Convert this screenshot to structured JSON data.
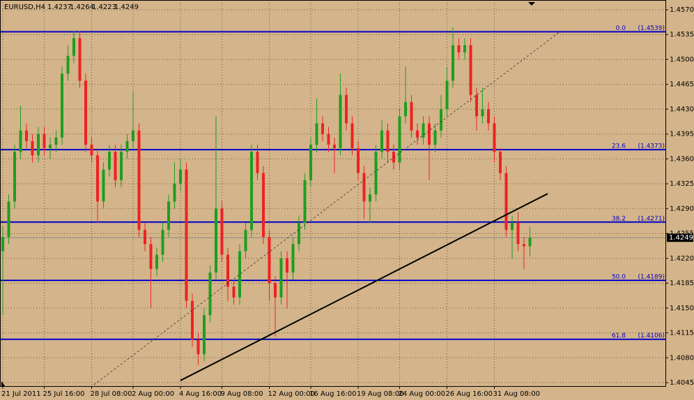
{
  "chart_data": {
    "type": "candlestick",
    "symbol": "EURUSD,H4",
    "ohlc": [
      1.4237,
      1.4264,
      1.4223,
      1.4249
    ],
    "categories": [
      "21 Jul 2011",
      null,
      null,
      null,
      null,
      null,
      null,
      "25 Jul 16:00",
      null,
      null,
      null,
      null,
      null,
      null,
      null,
      "28 Jul 08:00",
      null,
      null,
      null,
      null,
      null,
      null,
      "2 Aug 00:00",
      null,
      null,
      null,
      null,
      null,
      null,
      null,
      "4 Aug 16:00",
      null,
      null,
      null,
      null,
      null,
      null,
      "9 Aug 08:00",
      null,
      null,
      null,
      null,
      null,
      null,
      null,
      "12 Aug 00:00",
      null,
      null,
      null,
      null,
      null,
      null,
      "16 Aug 16:00",
      null,
      null,
      null,
      null,
      null,
      null,
      null,
      "19 Aug 08:00",
      null,
      null,
      null,
      null,
      null,
      null,
      "24 Aug 00:00",
      null,
      null,
      null,
      null,
      null,
      null,
      null,
      "26 Aug 16:00",
      null,
      null,
      null,
      null,
      null,
      null,
      null,
      "31 Aug 08:00",
      null,
      null,
      null,
      null,
      null,
      null
    ],
    "open": [
      1.423,
      1.425,
      1.43,
      1.437,
      1.44,
      1.4385,
      1.4365,
      1.4395,
      1.4375,
      1.438,
      1.439,
      1.448,
      1.4505,
      1.453,
      1.447,
      1.438,
      1.4365,
      1.43,
      1.4345,
      1.437,
      1.433,
      1.437,
      1.4385,
      1.44,
      1.426,
      1.424,
      1.4205,
      1.4225,
      1.426,
      1.43,
      1.4325,
      1.4345,
      1.416,
      1.4105,
      1.4085,
      1.414,
      1.42,
      1.429,
      1.4225,
      1.418,
      1.4165,
      1.423,
      1.426,
      1.437,
      1.434,
      1.425,
      1.4185,
      1.4165,
      1.422,
      1.42,
      1.424,
      1.427,
      1.433,
      1.438,
      1.441,
      1.4395,
      1.438,
      1.4375,
      1.445,
      1.441,
      1.4375,
      1.434,
      1.43,
      1.431,
      1.437,
      1.44,
      1.437,
      1.4355,
      1.442,
      1.444,
      1.44,
      1.439,
      1.441,
      1.438,
      1.44,
      1.443,
      1.447,
      1.452,
      1.451,
      1.452,
      1.445,
      1.442,
      1.443,
      1.441,
      1.437,
      1.434,
      1.426,
      1.427,
      1.424,
      1.4237
    ],
    "high": [
      1.4265,
      1.431,
      1.438,
      1.4435,
      1.441,
      1.4395,
      1.4405,
      1.4405,
      1.439,
      1.44,
      1.449,
      1.452,
      1.454,
      1.454,
      1.448,
      1.439,
      1.4375,
      1.4355,
      1.438,
      1.438,
      1.438,
      1.4395,
      1.4455,
      1.441,
      1.427,
      1.425,
      1.4235,
      1.427,
      1.431,
      1.4355,
      1.436,
      1.4355,
      1.417,
      1.4115,
      1.415,
      1.421,
      1.442,
      1.43,
      1.4235,
      1.419,
      1.424,
      1.427,
      1.438,
      1.438,
      1.435,
      1.426,
      1.4195,
      1.423,
      1.423,
      1.425,
      1.428,
      1.434,
      1.439,
      1.4445,
      1.442,
      1.4405,
      1.439,
      1.448,
      1.446,
      1.442,
      1.4385,
      1.435,
      1.432,
      1.438,
      1.4415,
      1.441,
      1.438,
      1.443,
      1.449,
      1.445,
      1.441,
      1.442,
      1.442,
      1.441,
      1.445,
      1.449,
      1.4545,
      1.453,
      1.453,
      1.453,
      1.446,
      1.446,
      1.444,
      1.442,
      1.4375,
      1.435,
      1.428,
      1.4285,
      1.425,
      1.4264
    ],
    "low": [
      1.414,
      1.424,
      1.429,
      1.436,
      1.4375,
      1.4355,
      1.4355,
      1.4365,
      1.436,
      1.437,
      1.438,
      1.447,
      1.4495,
      1.446,
      1.437,
      1.4355,
      1.427,
      1.429,
      1.4335,
      1.432,
      1.432,
      1.436,
      1.4375,
      1.425,
      1.423,
      1.415,
      1.4195,
      1.4215,
      1.425,
      1.429,
      1.4315,
      1.415,
      1.4095,
      1.407,
      1.4075,
      1.413,
      1.419,
      1.4215,
      1.416,
      1.4155,
      1.4155,
      1.422,
      1.425,
      1.433,
      1.424,
      1.416,
      1.411,
      1.4155,
      1.415,
      1.419,
      1.423,
      1.426,
      1.432,
      1.437,
      1.4385,
      1.437,
      1.434,
      1.4365,
      1.44,
      1.4365,
      1.433,
      1.4275,
      1.427,
      1.43,
      1.436,
      1.4355,
      1.4345,
      1.4345,
      1.441,
      1.439,
      1.438,
      1.438,
      1.433,
      1.437,
      1.439,
      1.442,
      1.446,
      1.45,
      1.45,
      1.444,
      1.44,
      1.441,
      1.44,
      1.4355,
      1.433,
      1.425,
      1.422,
      1.423,
      1.4205,
      1.4223
    ],
    "close": [
      1.425,
      1.43,
      1.437,
      1.44,
      1.4385,
      1.4365,
      1.4395,
      1.4375,
      1.438,
      1.439,
      1.448,
      1.4505,
      1.453,
      1.447,
      1.438,
      1.4365,
      1.43,
      1.4345,
      1.437,
      1.433,
      1.437,
      1.4385,
      1.44,
      1.426,
      1.424,
      1.4205,
      1.4225,
      1.426,
      1.43,
      1.4325,
      1.4345,
      1.416,
      1.4105,
      1.4085,
      1.414,
      1.42,
      1.429,
      1.4225,
      1.418,
      1.4165,
      1.423,
      1.426,
      1.437,
      1.434,
      1.425,
      1.4185,
      1.4165,
      1.422,
      1.42,
      1.424,
      1.427,
      1.433,
      1.438,
      1.441,
      1.4395,
      1.438,
      1.4375,
      1.445,
      1.441,
      1.4375,
      1.434,
      1.43,
      1.431,
      1.437,
      1.44,
      1.437,
      1.4355,
      1.442,
      1.444,
      1.44,
      1.439,
      1.441,
      1.438,
      1.44,
      1.443,
      1.447,
      1.452,
      1.451,
      1.452,
      1.445,
      1.442,
      1.443,
      1.441,
      1.437,
      1.434,
      1.426,
      1.427,
      1.424,
      1.4237,
      1.4249
    ],
    "up_color": "#1e9e1e",
    "down_color": "#ee2222",
    "ylim": [
      1.4045,
      1.457
    ],
    "yticks": [
      {
        "value": 1.457,
        "label": "1.4570"
      },
      1.4535,
      {
        "value": 1.45,
        "label": "1.4500"
      },
      1.4465,
      {
        "value": 1.443,
        "label": "1.4430"
      },
      1.4395,
      {
        "value": 1.436,
        "label": "1.4360"
      },
      1.4325,
      {
        "value": 1.429,
        "label": "1.4290"
      },
      1.4255,
      {
        "value": 1.422,
        "label": "1.4220"
      },
      1.4185,
      {
        "value": 1.415,
        "label": "1.4150"
      },
      1.4115,
      {
        "value": 1.408,
        "label": "1.4080"
      },
      1.4045
    ],
    "grid": true,
    "fibonacci": [
      {
        "level": "0.0",
        "price": 1.4539,
        "price_label": "(1.4539)"
      },
      {
        "level": "23.6",
        "price": 1.4373,
        "price_label": "(1.4373)"
      },
      {
        "level": "38.2",
        "price": 1.4271,
        "price_label": "(1.4271)"
      },
      {
        "level": "50.0",
        "price": 1.4189,
        "price_label": "(1.4189)"
      },
      {
        "level": "61.8",
        "price": 1.4106,
        "price_label": "(1.4106)"
      }
    ],
    "fib_color": "#0000c8",
    "trendlines": [
      {
        "x": [
          30,
          92
        ],
        "y": [
          1.4048,
          1.4311
        ],
        "style": "solid"
      },
      {
        "x": [
          15.4,
          94.2
        ],
        "y": [
          1.4042,
          1.454
        ],
        "style": "dashed"
      }
    ]
  }
}
